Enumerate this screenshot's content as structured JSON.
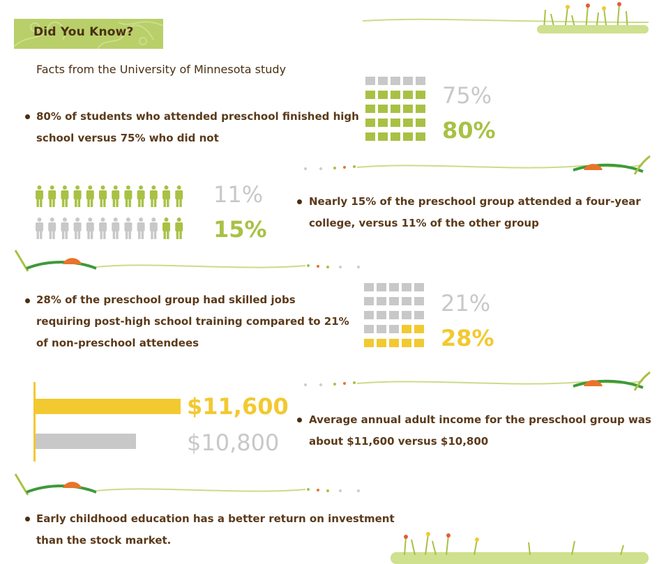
{
  "header": {
    "title": "Did You Know?",
    "subtitle": "Facts from the University of Minnesota study"
  },
  "facts": [
    {
      "line1": "80% of students who attended preschool finished high",
      "line2": "school versus 75% who did not"
    },
    {
      "line1": "Nearly 15% of the preschool group attended a four-year",
      "line2": "college, versus 11% of the other group"
    },
    {
      "line1": "28% of the preschool group had skilled jobs",
      "line2": "requiring post-high school training compared to 21%",
      "line3": "of non-preschool attendees"
    },
    {
      "line1": "Average annual adult income for the preschool group was",
      "line2": "about $11,600 versus $10,800"
    },
    {
      "line1": "Early childhood education has a better return on investment",
      "line2": "than the stock market."
    }
  ],
  "colors": {
    "green": "#a8c145",
    "gray": "#c8c8c8",
    "yellow": "#f2c930",
    "brown": "#5b3a1a",
    "orange": "#e8742a"
  },
  "chart_data": [
    {
      "type": "waffle",
      "grid": [
        5,
        5
      ],
      "series": [
        {
          "value": 75
        },
        {
          "value": 80
        }
      ],
      "labels": [
        "75%",
        "80%"
      ]
    },
    {
      "type": "pictograph",
      "icon": "person-icon",
      "icons_per_row": 12,
      "series": [
        {
          "value": 11
        },
        {
          "value": 15
        }
      ],
      "labels": [
        "11%",
        "15%"
      ]
    },
    {
      "type": "waffle",
      "grid": [
        5,
        5
      ],
      "series": [
        {
          "value": 21
        },
        {
          "value": 28
        }
      ],
      "labels": [
        "21%",
        "28%"
      ]
    },
    {
      "type": "bar",
      "orientation": "horizontal",
      "values": [
        11600,
        10800
      ],
      "labels": [
        "$11,600",
        "$10,800"
      ]
    }
  ]
}
